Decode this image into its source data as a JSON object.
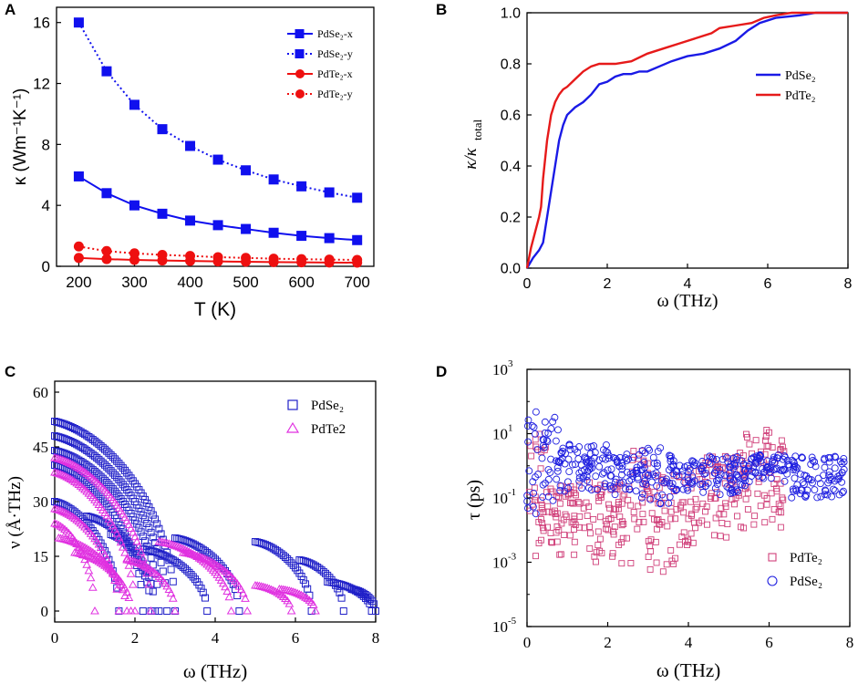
{
  "chart_data": [
    {
      "panel": "A",
      "type": "line",
      "xlabel": "T (K)",
      "ylabel": "κ (Wm⁻¹K⁻¹)",
      "xlim": [
        160,
        730
      ],
      "ylim": [
        0,
        17
      ],
      "xticks": [
        200,
        300,
        400,
        500,
        600,
        700
      ],
      "yticks": [
        0,
        4,
        8,
        12,
        16
      ],
      "x": [
        200,
        250,
        300,
        350,
        400,
        450,
        500,
        550,
        600,
        650,
        700
      ],
      "legend_position": "top-right",
      "series": [
        {
          "name": "PdSe₂-x",
          "color": "#1010ee",
          "marker": "square",
          "dash": "solid",
          "values": [
            5.9,
            4.8,
            4.0,
            3.45,
            3.0,
            2.7,
            2.45,
            2.2,
            2.0,
            1.85,
            1.72
          ]
        },
        {
          "name": "PdSe₂-y",
          "color": "#1010ee",
          "marker": "square",
          "dash": "dotted",
          "values": [
            16.0,
            12.8,
            10.6,
            9.0,
            7.9,
            7.0,
            6.3,
            5.7,
            5.25,
            4.85,
            4.5
          ]
        },
        {
          "name": "PdTe₂-x",
          "color": "#ee1010",
          "marker": "circle",
          "dash": "solid",
          "values": [
            0.55,
            0.47,
            0.42,
            0.38,
            0.35,
            0.32,
            0.3,
            0.28,
            0.26,
            0.25,
            0.24
          ]
        },
        {
          "name": "PdTe₂-y",
          "color": "#ee1010",
          "marker": "circle",
          "dash": "dotted",
          "values": [
            1.3,
            1.0,
            0.85,
            0.75,
            0.68,
            0.6,
            0.55,
            0.5,
            0.47,
            0.44,
            0.42
          ]
        }
      ]
    },
    {
      "panel": "B",
      "type": "line",
      "xlabel": "ω (THz)",
      "ylabel": "κ/κtotal",
      "ylabel_main": "κ/κ",
      "ylabel_sub": "total",
      "xlim": [
        0,
        8
      ],
      "ylim": [
        0,
        1
      ],
      "xticks": [
        0,
        2,
        4,
        6,
        8
      ],
      "yticks": [
        0.0,
        0.2,
        0.4,
        0.6,
        0.8,
        1.0
      ],
      "legend_position": "middle-right",
      "series": [
        {
          "name": "PdSe₂",
          "color": "#1a1ae6",
          "points": [
            [
              0,
              0
            ],
            [
              0.15,
              0.04
            ],
            [
              0.3,
              0.07
            ],
            [
              0.4,
              0.1
            ],
            [
              0.5,
              0.2
            ],
            [
              0.6,
              0.3
            ],
            [
              0.7,
              0.4
            ],
            [
              0.8,
              0.5
            ],
            [
              0.9,
              0.56
            ],
            [
              1.0,
              0.6
            ],
            [
              1.2,
              0.63
            ],
            [
              1.4,
              0.65
            ],
            [
              1.6,
              0.68
            ],
            [
              1.8,
              0.72
            ],
            [
              2.0,
              0.73
            ],
            [
              2.2,
              0.75
            ],
            [
              2.4,
              0.76
            ],
            [
              2.6,
              0.76
            ],
            [
              2.8,
              0.77
            ],
            [
              3.0,
              0.77
            ],
            [
              3.3,
              0.79
            ],
            [
              3.6,
              0.81
            ],
            [
              4.0,
              0.83
            ],
            [
              4.4,
              0.84
            ],
            [
              4.8,
              0.86
            ],
            [
              5.2,
              0.89
            ],
            [
              5.5,
              0.93
            ],
            [
              5.8,
              0.96
            ],
            [
              6.2,
              0.98
            ],
            [
              6.8,
              0.99
            ],
            [
              7.2,
              1.0
            ],
            [
              8.0,
              1.0
            ]
          ]
        },
        {
          "name": "PdTe₂",
          "color": "#e61a1a",
          "points": [
            [
              0,
              0
            ],
            [
              0.1,
              0.08
            ],
            [
              0.2,
              0.14
            ],
            [
              0.3,
              0.2
            ],
            [
              0.35,
              0.24
            ],
            [
              0.4,
              0.35
            ],
            [
              0.5,
              0.5
            ],
            [
              0.6,
              0.6
            ],
            [
              0.7,
              0.65
            ],
            [
              0.8,
              0.68
            ],
            [
              0.9,
              0.7
            ],
            [
              1.0,
              0.71
            ],
            [
              1.2,
              0.74
            ],
            [
              1.4,
              0.77
            ],
            [
              1.6,
              0.79
            ],
            [
              1.8,
              0.8
            ],
            [
              2.0,
              0.8
            ],
            [
              2.2,
              0.8
            ],
            [
              2.6,
              0.81
            ],
            [
              3.0,
              0.84
            ],
            [
              3.4,
              0.86
            ],
            [
              3.8,
              0.88
            ],
            [
              4.2,
              0.9
            ],
            [
              4.6,
              0.92
            ],
            [
              4.8,
              0.94
            ],
            [
              5.2,
              0.95
            ],
            [
              5.6,
              0.96
            ],
            [
              5.9,
              0.98
            ],
            [
              6.2,
              0.99
            ],
            [
              6.6,
              1.0
            ],
            [
              8.0,
              1.0
            ]
          ]
        }
      ]
    },
    {
      "panel": "C",
      "type": "scatter",
      "xlabel": "ω (THz)",
      "ylabel": "ν (Å·THz)",
      "xlim": [
        0,
        8
      ],
      "ylim": [
        -3,
        63
      ],
      "xticks": [
        0,
        2,
        4,
        6,
        8
      ],
      "yticks": [
        0,
        15,
        30,
        45,
        60
      ],
      "legend_position": "top-right",
      "series": [
        {
          "name": "PdSe₂",
          "color": "#2020c8",
          "marker": "open-square",
          "arcs": [
            [
              0,
              3.0,
              52
            ],
            [
              0,
              2.8,
              48
            ],
            [
              0,
              2.6,
              44
            ],
            [
              0,
              2.2,
              40
            ],
            [
              0,
              1.6,
              30
            ],
            [
              0.8,
              2.5,
              26
            ],
            [
              1.4,
              2.4,
              21
            ],
            [
              2.2,
              3.8,
              17
            ],
            [
              3.0,
              4.6,
              20
            ],
            [
              5.0,
              6.4,
              19
            ],
            [
              6.1,
              7.2,
              14
            ],
            [
              6.8,
              7.9,
              8
            ],
            [
              7.4,
              8.0,
              6
            ]
          ]
        },
        {
          "name": "PdTe2",
          "color": "#e030e0",
          "marker": "open-triangle",
          "arcs": [
            [
              0,
              2.4,
              42
            ],
            [
              0,
              2.0,
              38
            ],
            [
              0,
              1.6,
              28
            ],
            [
              0,
              1.0,
              24
            ],
            [
              0.1,
              1.8,
              20
            ],
            [
              0.5,
              1.9,
              16
            ],
            [
              1.8,
              3.0,
              14
            ],
            [
              2.6,
              4.4,
              19
            ],
            [
              3.2,
              4.8,
              16
            ],
            [
              5.0,
              5.9,
              7
            ],
            [
              5.6,
              6.5,
              6
            ]
          ]
        }
      ]
    },
    {
      "panel": "D",
      "type": "scatter",
      "xlabel": "ω (THz)",
      "ylabel": "τ (ps)",
      "yscale": "log",
      "xlim": [
        0,
        8
      ],
      "ylim_log10": [
        -5,
        3
      ],
      "xticks": [
        0,
        2,
        4,
        6,
        8
      ],
      "ytick_exponents": [
        -5,
        -3,
        -1,
        1,
        3
      ],
      "ytick_base": "10",
      "legend_position": "bottom-right",
      "series": [
        {
          "name": "PdTe₂",
          "color": "#d0407a",
          "marker": "open-square",
          "bands": [
            [
              0,
              0.5,
              -3,
              1
            ],
            [
              0.5,
              1.5,
              -2.8,
              -0.6
            ],
            [
              1.5,
              2.6,
              -3.2,
              -0.5
            ],
            [
              2.6,
              3.0,
              -2,
              0.5
            ],
            [
              3.0,
              3.7,
              -3.5,
              -0.2
            ],
            [
              3.7,
              4.2,
              -2.5,
              0
            ],
            [
              4.2,
              5.0,
              -2.3,
              0.3
            ],
            [
              5.0,
              5.4,
              -2.2,
              0.5
            ],
            [
              5.4,
              6.4,
              -2,
              1.2
            ]
          ]
        },
        {
          "name": "PdSe₂",
          "color": "#2020e0",
          "marker": "open-circle",
          "bands": [
            [
              0,
              0.3,
              -1.5,
              2
            ],
            [
              0.3,
              0.8,
              -1.2,
              1.6
            ],
            [
              0.8,
              2.0,
              -0.9,
              0.7
            ],
            [
              2.0,
              2.8,
              -0.9,
              0.4
            ],
            [
              2.8,
              3.6,
              -1.2,
              0.6
            ],
            [
              3.6,
              4.2,
              -0.8,
              0.2
            ],
            [
              4.2,
              5.4,
              -0.9,
              0.3
            ],
            [
              5.4,
              6.4,
              -0.5,
              0.4
            ],
            [
              6.4,
              7.9,
              -1,
              0.3
            ]
          ]
        }
      ]
    }
  ],
  "panel_labels": [
    "A",
    "B",
    "C",
    "D"
  ]
}
